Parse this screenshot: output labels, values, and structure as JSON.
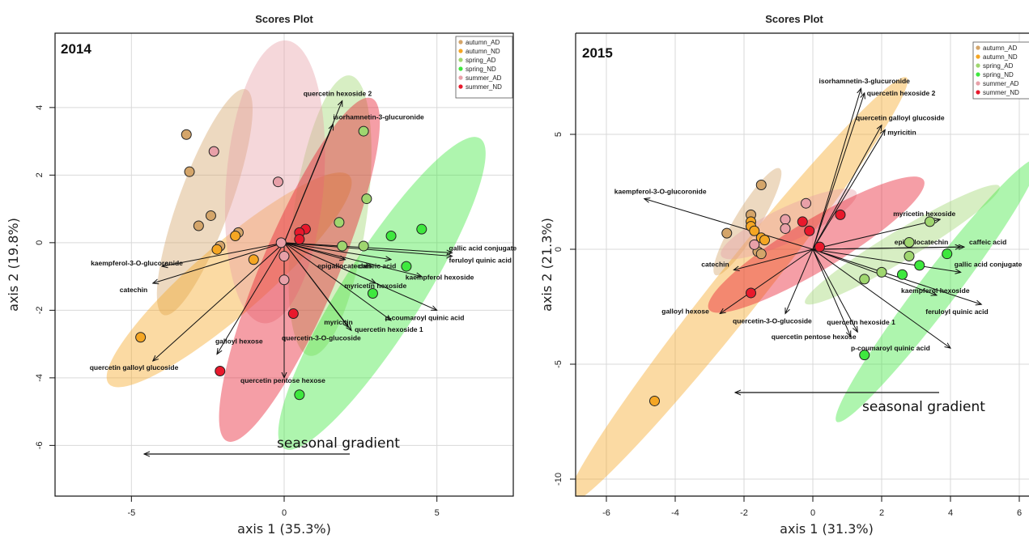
{
  "chart_data": [
    {
      "type": "scatter",
      "subtype": "pca-biplot",
      "title": "Scores Plot",
      "panel_label": "2014",
      "xlabel": "axis 1 (35.3%)",
      "ylabel": "axis 2 (19.8%)",
      "xlim": [
        -7.5,
        7.5
      ],
      "ylim": [
        -7.5,
        6.2
      ],
      "xticks": [
        -5,
        0,
        5
      ],
      "yticks": [
        -6,
        -4,
        -2,
        0,
        2,
        4
      ],
      "grid": true,
      "legend": "top-right",
      "series": [
        {
          "name": "autumn_AD",
          "color": "#d4a56a",
          "points": [
            [
              -3.2,
              3.2
            ],
            [
              -3.1,
              2.1
            ],
            [
              -2.4,
              0.8
            ],
            [
              -2.8,
              0.5
            ],
            [
              -2.1,
              -0.1
            ],
            [
              -1.5,
              0.3
            ]
          ]
        },
        {
          "name": "autumn_ND",
          "color": "#f5a623",
          "points": [
            [
              -2.2,
              -0.2
            ],
            [
              -1.6,
              0.2
            ],
            [
              -1.0,
              -0.5
            ],
            [
              -4.7,
              -2.8
            ]
          ]
        },
        {
          "name": "spring_AD",
          "color": "#9fd66f",
          "points": [
            [
              2.6,
              3.3
            ],
            [
              2.7,
              1.3
            ],
            [
              1.8,
              0.6
            ],
            [
              1.9,
              -0.1
            ],
            [
              2.6,
              -0.1
            ]
          ]
        },
        {
          "name": "spring_ND",
          "color": "#3ee83e",
          "points": [
            [
              3.5,
              0.2
            ],
            [
              4.5,
              0.4
            ],
            [
              4.0,
              -0.7
            ],
            [
              2.9,
              -1.5
            ],
            [
              0.5,
              -4.5
            ]
          ]
        },
        {
          "name": "summer_AD",
          "color": "#e8a0a8",
          "points": [
            [
              -2.3,
              2.7
            ],
            [
              -0.2,
              1.8
            ],
            [
              -0.1,
              0.0
            ],
            [
              0.0,
              -0.4
            ],
            [
              0.0,
              -1.1
            ]
          ]
        },
        {
          "name": "summer_ND",
          "color": "#e8192c",
          "points": [
            [
              0.7,
              0.4
            ],
            [
              0.5,
              0.3
            ],
            [
              0.5,
              0.1
            ],
            [
              0.3,
              -2.1
            ],
            [
              -2.1,
              -3.8
            ]
          ]
        }
      ],
      "ellipses": [
        {
          "group": "autumn_AD",
          "center": [
            -2.6,
            1.2
          ],
          "semi_axes": [
            3.6,
            0.85
          ],
          "angle_deg": 68
        },
        {
          "group": "autumn_ND",
          "center": [
            -1.8,
            -1.1
          ],
          "semi_axes": [
            5.0,
            1.15
          ],
          "angle_deg": 38
        },
        {
          "group": "spring_AD",
          "center": [
            1.5,
            0.8
          ],
          "semi_axes": [
            4.2,
            1.2
          ],
          "angle_deg": 81
        },
        {
          "group": "spring_ND",
          "center": [
            3.2,
            -1.5
          ],
          "semi_axes": [
            5.6,
            1.3
          ],
          "angle_deg": 55
        },
        {
          "group": "summer_AD",
          "center": [
            -0.3,
            1.8
          ],
          "semi_axes": [
            4.2,
            1.6
          ],
          "angle_deg": 85
        },
        {
          "group": "summer_ND",
          "center": [
            0.5,
            -0.8
          ],
          "semi_axes": [
            5.6,
            1.25
          ],
          "angle_deg": 65
        }
      ],
      "loadings": [
        {
          "label": "quercetin hexoside 2",
          "end": [
            1.9,
            4.2
          ]
        },
        {
          "label": "isorhamnetin-3-glucuronide",
          "end": [
            1.6,
            3.5
          ]
        },
        {
          "label": "gallic acid conjugate",
          "end": [
            5.5,
            -0.3
          ]
        },
        {
          "label": "feruloyl quinic acid",
          "end": [
            5.5,
            -0.4
          ]
        },
        {
          "label": "epigallocatechin",
          "end": [
            2.0,
            -0.5
          ]
        },
        {
          "label": "caffeic acid",
          "end": [
            3.5,
            -0.5
          ]
        },
        {
          "label": "kaempferol hexoside",
          "end": [
            4.5,
            -1.0
          ]
        },
        {
          "label": "myricetin hexoside",
          "end": [
            3.0,
            -1.2
          ]
        },
        {
          "label": "p-coumaroyl quinic acid",
          "end": [
            5.0,
            -2.0
          ]
        },
        {
          "label": "quercetin hexoside 1",
          "end": [
            3.5,
            -2.3
          ]
        },
        {
          "label": "myricitin",
          "end": [
            2.1,
            -2.5
          ]
        },
        {
          "label": "quercetin-3-O-glucoside",
          "end": [
            2.2,
            -2.6
          ]
        },
        {
          "label": "quercetin pentose hexose",
          "end": [
            0.0,
            -4.0
          ]
        },
        {
          "label": "galloyl hexose",
          "end": [
            -2.2,
            -3.3
          ]
        },
        {
          "label": "quercetin galloyl glucoside",
          "end": [
            -4.3,
            -3.5
          ]
        },
        {
          "label": "kaempferol-3-O-glucoronide",
          "end": [
            -4.0,
            -0.7
          ]
        },
        {
          "label": "catechin",
          "end": [
            -4.3,
            -1.2
          ]
        }
      ],
      "annotation": "seasonal gradient"
    },
    {
      "type": "scatter",
      "subtype": "pca-biplot",
      "title": "Scores Plot",
      "panel_label": "2015",
      "xlabel": "axis 1 (31.3%)",
      "ylabel": "axis 2 (21.3%)",
      "xlim": [
        -6.8,
        6.3
      ],
      "ylim": [
        -10.9,
        9.2
      ],
      "xticks": [
        -6,
        -4,
        -2,
        0,
        2,
        4,
        6
      ],
      "yticks": [
        -10,
        -5,
        0,
        5
      ],
      "grid": true,
      "legend": "top-right",
      "series": [
        {
          "name": "autumn_AD",
          "color": "#d4a56a",
          "points": [
            [
              -1.5,
              2.8
            ],
            [
              -2.5,
              0.7
            ],
            [
              -1.8,
              1.5
            ],
            [
              -1.6,
              -0.1
            ],
            [
              -1.5,
              -0.2
            ]
          ]
        },
        {
          "name": "autumn_ND",
          "color": "#f5a623",
          "points": [
            [
              -1.8,
              1.2
            ],
            [
              -1.8,
              1.0
            ],
            [
              -1.7,
              0.8
            ],
            [
              -1.5,
              0.5
            ],
            [
              -1.4,
              0.4
            ],
            [
              -4.6,
              -6.6
            ]
          ]
        },
        {
          "name": "spring_AD",
          "color": "#9fd66f",
          "points": [
            [
              3.4,
              1.2
            ],
            [
              2.8,
              0.3
            ],
            [
              2.8,
              -0.3
            ],
            [
              2.0,
              -1.0
            ],
            [
              1.5,
              -1.3
            ]
          ]
        },
        {
          "name": "spring_ND",
          "color": "#3ee83e",
          "points": [
            [
              3.9,
              -0.2
            ],
            [
              3.1,
              -0.7
            ],
            [
              2.6,
              -1.1
            ],
            [
              1.5,
              -4.6
            ]
          ]
        },
        {
          "name": "summer_AD",
          "color": "#e8a0a8",
          "points": [
            [
              -0.2,
              2.0
            ],
            [
              -0.8,
              1.3
            ],
            [
              -0.8,
              0.9
            ],
            [
              -1.7,
              0.2
            ]
          ]
        },
        {
          "name": "summer_ND",
          "color": "#e8192c",
          "points": [
            [
              -0.3,
              1.2
            ],
            [
              0.8,
              1.5
            ],
            [
              -0.1,
              0.8
            ],
            [
              0.2,
              0.1
            ],
            [
              -1.8,
              -1.9
            ]
          ]
        }
      ],
      "ellipses": [
        {
          "group": "autumn_AD",
          "center": [
            -1.9,
            1.2
          ],
          "semi_axes": [
            2.5,
            0.55
          ],
          "angle_deg": 68
        },
        {
          "group": "autumn_ND",
          "center": [
            -2.2,
            -1.8
          ],
          "semi_axes": [
            10.5,
            1.05
          ],
          "angle_deg": 62
        },
        {
          "group": "spring_AD",
          "center": [
            2.6,
            0.2
          ],
          "semi_axes": [
            3.8,
            0.65
          ],
          "angle_deg": 42
        },
        {
          "group": "spring_ND",
          "center": [
            3.6,
            -1.8
          ],
          "semi_axes": [
            6.4,
            0.8
          ],
          "angle_deg": 63
        },
        {
          "group": "summer_AD",
          "center": [
            -0.7,
            1.1
          ],
          "semi_axes": [
            2.4,
            0.75
          ],
          "angle_deg": 35
        },
        {
          "group": "summer_ND",
          "center": [
            0.1,
            0.2
          ],
          "semi_axes": [
            4.2,
            1.1
          ],
          "angle_deg": 42
        }
      ],
      "loadings": [
        {
          "label": "isorhamnetin-3-glucuronide",
          "end": [
            1.4,
            7.0
          ]
        },
        {
          "label": "quercetin hexoside 2",
          "end": [
            1.5,
            6.8
          ]
        },
        {
          "label": "quercetin galloyl glucoside",
          "end": [
            2.0,
            5.4
          ]
        },
        {
          "label": "myricitin",
          "end": [
            2.1,
            5.2
          ]
        },
        {
          "label": "kaempferol-3-O-glucoronide",
          "end": [
            -4.9,
            2.2
          ]
        },
        {
          "label": "myricetin hexoside",
          "end": [
            3.7,
            1.3
          ]
        },
        {
          "label": "epigallocatechin",
          "end": [
            4.3,
            0.1
          ]
        },
        {
          "label": "caffeic acid",
          "end": [
            4.4,
            0.1
          ]
        },
        {
          "label": "gallic acid conjugate",
          "end": [
            4.3,
            -1.0
          ]
        },
        {
          "label": "kaempferol hexoside",
          "end": [
            3.6,
            -2.0
          ]
        },
        {
          "label": "feruloyl quinic acid",
          "end": [
            4.9,
            -2.4
          ]
        },
        {
          "label": "p-coumaroyl quinic acid",
          "end": [
            4.0,
            -4.3
          ]
        },
        {
          "label": "quercetin hexoside 1",
          "end": [
            1.3,
            -3.6
          ]
        },
        {
          "label": "quercetin pentose hexose",
          "end": [
            1.1,
            -3.8
          ]
        },
        {
          "label": "quercetin-3-O-glucoside",
          "end": [
            -0.8,
            -2.8
          ]
        },
        {
          "label": "galloyl hexose",
          "end": [
            -2.7,
            -2.8
          ]
        },
        {
          "label": "catechin",
          "end": [
            -2.3,
            -0.9
          ]
        }
      ],
      "annotation": "seasonal gradient"
    }
  ]
}
